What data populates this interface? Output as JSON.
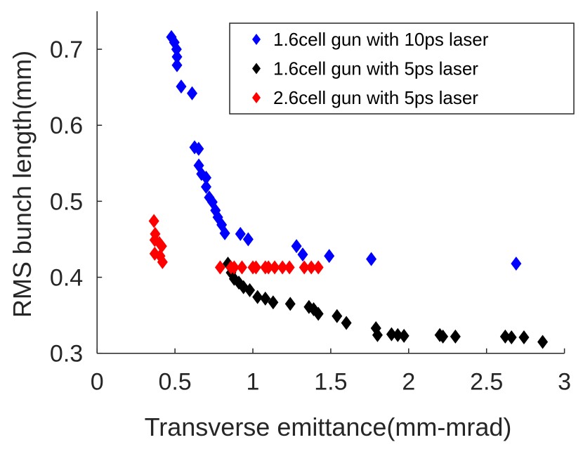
{
  "chart_data": {
    "type": "scatter",
    "title": "",
    "xlabel": "Transverse emittance(mm-mrad)",
    "ylabel": "RMS bunch length(mm)",
    "xlim": [
      0,
      3
    ],
    "ylim": [
      0.3,
      0.75
    ],
    "xticks": [
      0,
      0.5,
      1,
      1.5,
      2,
      2.5,
      3
    ],
    "xtick_labels": [
      "0",
      "0.5",
      "1",
      "1.5",
      "2",
      "2.5",
      "3"
    ],
    "yticks": [
      0.3,
      0.4,
      0.5,
      0.6,
      0.7
    ],
    "ytick_labels": [
      "0.3",
      "0.4",
      "0.5",
      "0.6",
      "0.7"
    ],
    "grid": false,
    "legend_position": "top-right",
    "marker": "diamond",
    "series": [
      {
        "name": "1.6cell gun with 10ps laser",
        "color": "#0000ff",
        "points": [
          [
            0.477,
            0.716
          ],
          [
            0.496,
            0.709
          ],
          [
            0.51,
            0.7
          ],
          [
            0.513,
            0.69
          ],
          [
            0.513,
            0.679
          ],
          [
            0.54,
            0.651
          ],
          [
            0.61,
            0.642
          ],
          [
            0.626,
            0.571
          ],
          [
            0.652,
            0.569
          ],
          [
            0.653,
            0.547
          ],
          [
            0.67,
            0.536
          ],
          [
            0.7,
            0.531
          ],
          [
            0.7,
            0.519
          ],
          [
            0.72,
            0.505
          ],
          [
            0.74,
            0.499
          ],
          [
            0.76,
            0.488
          ],
          [
            0.775,
            0.479
          ],
          [
            0.8,
            0.469
          ],
          [
            0.82,
            0.458
          ],
          [
            0.92,
            0.457
          ],
          [
            0.97,
            0.45
          ],
          [
            1.28,
            0.441
          ],
          [
            1.32,
            0.43
          ],
          [
            1.49,
            0.428
          ],
          [
            1.76,
            0.424
          ],
          [
            2.69,
            0.418
          ]
        ]
      },
      {
        "name": "1.6cell gun with 5ps laser",
        "color": "#000000",
        "points": [
          [
            0.84,
            0.418
          ],
          [
            0.86,
            0.406
          ],
          [
            0.88,
            0.398
          ],
          [
            0.91,
            0.393
          ],
          [
            0.94,
            0.387
          ],
          [
            0.98,
            0.383
          ],
          [
            1.03,
            0.374
          ],
          [
            1.08,
            0.372
          ],
          [
            1.13,
            0.367
          ],
          [
            1.24,
            0.365
          ],
          [
            1.36,
            0.361
          ],
          [
            1.39,
            0.358
          ],
          [
            1.42,
            0.352
          ],
          [
            1.54,
            0.349
          ],
          [
            1.6,
            0.34
          ],
          [
            1.79,
            0.333
          ],
          [
            1.8,
            0.324
          ],
          [
            1.89,
            0.325
          ],
          [
            1.93,
            0.324
          ],
          [
            1.97,
            0.323
          ],
          [
            2.2,
            0.324
          ],
          [
            2.22,
            0.322
          ],
          [
            2.3,
            0.322
          ],
          [
            2.62,
            0.322
          ],
          [
            2.66,
            0.321
          ],
          [
            2.74,
            0.321
          ],
          [
            2.86,
            0.315
          ]
        ]
      },
      {
        "name": "2.6cell gun with 5ps laser",
        "color": "#ff0000",
        "points": [
          [
            0.365,
            0.474
          ],
          [
            0.373,
            0.457
          ],
          [
            0.37,
            0.449
          ],
          [
            0.4,
            0.445
          ],
          [
            0.415,
            0.441
          ],
          [
            0.37,
            0.431
          ],
          [
            0.405,
            0.428
          ],
          [
            0.42,
            0.42
          ],
          [
            0.79,
            0.413
          ],
          [
            0.86,
            0.413
          ],
          [
            0.88,
            0.413
          ],
          [
            0.93,
            0.413
          ],
          [
            1.0,
            0.413
          ],
          [
            1.02,
            0.413
          ],
          [
            1.08,
            0.413
          ],
          [
            1.1,
            0.413
          ],
          [
            1.14,
            0.413
          ],
          [
            1.19,
            0.413
          ],
          [
            1.235,
            0.413
          ],
          [
            1.33,
            0.413
          ],
          [
            1.375,
            0.413
          ],
          [
            1.42,
            0.413
          ]
        ]
      }
    ]
  }
}
